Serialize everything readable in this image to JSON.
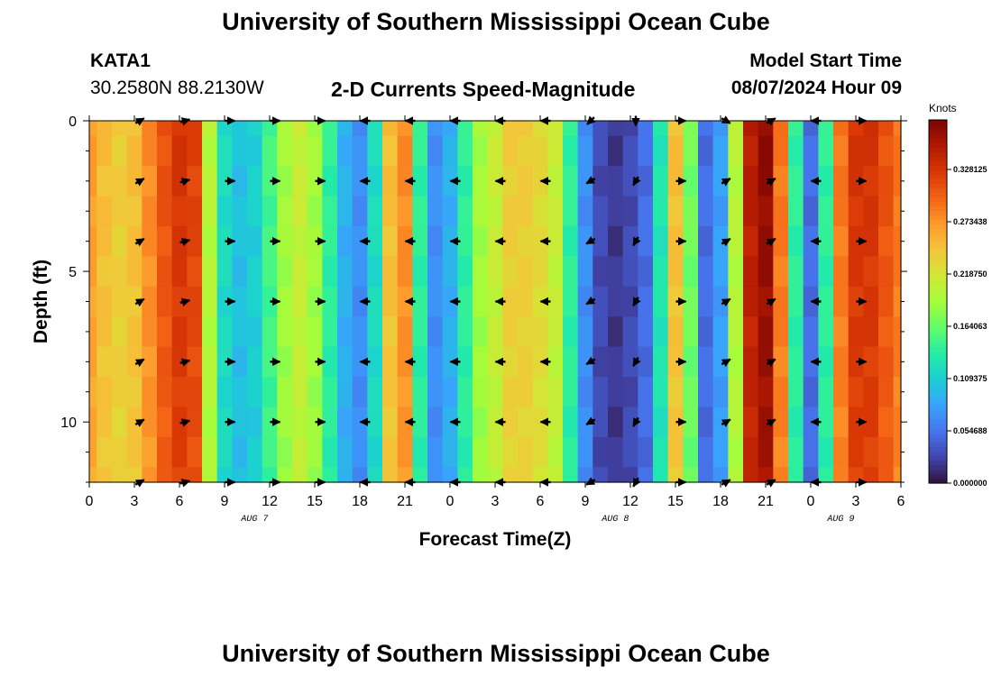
{
  "header": {
    "title": "University of Southern Mississippi Ocean Cube",
    "station_id": "KATA1",
    "station_coords": "30.2580N  88.2130W",
    "plot_title": "2-D Currents Speed-Magnitude",
    "model_start_label": "Model Start Time",
    "model_start_value": "08/07/2024 Hour 09"
  },
  "footer": {
    "title": "University of Southern Mississippi Ocean Cube"
  },
  "chart_data": {
    "type": "heatmap",
    "xlabel": "Forecast Time(Z)",
    "ylabel": "Depth (ft)",
    "x_tick_labels": [
      "0",
      "3",
      "6",
      "9",
      "12",
      "15",
      "18",
      "21",
      "0",
      "3",
      "6",
      "9",
      "12",
      "15",
      "18",
      "21",
      "0",
      "3",
      "6"
    ],
    "x_tick_hours": [
      0,
      3,
      6,
      9,
      12,
      15,
      18,
      21,
      24,
      27,
      30,
      33,
      36,
      39,
      42,
      45,
      48,
      51,
      54
    ],
    "date_labels": [
      {
        "hour": 11,
        "text": "AUG 7"
      },
      {
        "hour": 35,
        "text": "AUG 8"
      },
      {
        "hour": 50,
        "text": "AUG 9"
      }
    ],
    "xlim": [
      0,
      54
    ],
    "ylim": [
      0,
      12
    ],
    "y_ticks": [
      "0",
      "5",
      "10"
    ],
    "y_tick_values": [
      0,
      5,
      10
    ],
    "colorbar": {
      "title": "Knots",
      "range": [
        0.0,
        0.38
      ],
      "tick_labels": [
        "0.328125",
        "0.273438",
        "0.218750",
        "0.164063",
        "0.109375",
        "0.054688",
        "0.000000"
      ],
      "tick_values": [
        0.328125,
        0.273438,
        0.21875,
        0.164063,
        0.109375,
        0.054688,
        0.0
      ],
      "colors": [
        "#30123b",
        "#4145ab",
        "#4675ed",
        "#39a2fc",
        "#1bcfd4",
        "#24eca6",
        "#61fc6c",
        "#a4fc3b",
        "#d1e834",
        "#f3c63a",
        "#fe9b2d",
        "#f36315",
        "#d93806",
        "#b11901",
        "#7a0402"
      ]
    },
    "hours": [
      0,
      1,
      2,
      3,
      4,
      5,
      6,
      7,
      8,
      9,
      10,
      11,
      12,
      13,
      14,
      15,
      16,
      17,
      18,
      19,
      20,
      21,
      22,
      23,
      24,
      25,
      26,
      27,
      28,
      29,
      30,
      31,
      32,
      33,
      34,
      35,
      36,
      37,
      38,
      39,
      40,
      41,
      42,
      43,
      44,
      45,
      46,
      47,
      48,
      49,
      50,
      51,
      52,
      53,
      54
    ],
    "speed_knots": [
      0.27,
      0.25,
      0.24,
      0.25,
      0.28,
      0.31,
      0.33,
      0.32,
      0.2,
      0.12,
      0.1,
      0.11,
      0.15,
      0.19,
      0.21,
      0.19,
      0.14,
      0.09,
      0.07,
      0.12,
      0.25,
      0.28,
      0.14,
      0.07,
      0.09,
      0.14,
      0.19,
      0.21,
      0.24,
      0.24,
      0.23,
      0.21,
      0.14,
      0.07,
      0.03,
      0.02,
      0.03,
      0.05,
      0.13,
      0.25,
      0.17,
      0.05,
      0.08,
      0.2,
      0.35,
      0.37,
      0.29,
      0.14,
      0.05,
      0.14,
      0.29,
      0.33,
      0.33,
      0.31,
      0.29
    ],
    "depth_profile_ft": [
      0,
      1,
      2,
      3,
      4,
      5,
      6,
      7,
      8,
      9,
      10,
      11,
      12
    ],
    "vector_depths_ft": [
      0,
      2,
      4,
      6,
      8,
      10,
      12
    ],
    "vector_hours": [
      3,
      6,
      9,
      12,
      15,
      18,
      21,
      24,
      27,
      30,
      33,
      36,
      39,
      42,
      45,
      48,
      51
    ],
    "vector_direction_deg": [
      30,
      15,
      0,
      0,
      0,
      180,
      180,
      180,
      180,
      180,
      210,
      240,
      0,
      30,
      30,
      180,
      0
    ],
    "surface_overrides": {
      "33": 225,
      "36": 270,
      "42": 330
    }
  }
}
